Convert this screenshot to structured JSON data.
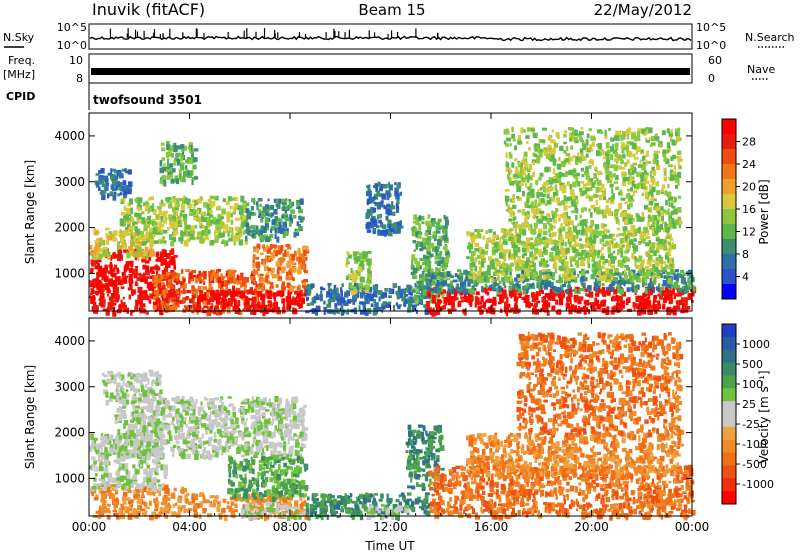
{
  "header": {
    "station": "Inuvik (fitACF)",
    "beam": "Beam 15",
    "date": "22/May/2012"
  },
  "side_labels": {
    "nsky": "N.Sky",
    "nsearch": "N.Search",
    "freq": "Freq.",
    "mhz": "[MHz]",
    "nave": "Nave",
    "cpid": "CPID",
    "cpid_value": "twofsound 3501"
  },
  "noise_panel": {
    "left_ticks": [
      "10^5",
      "10^0"
    ],
    "right_ticks": [
      "10^5",
      "10^0"
    ]
  },
  "freq_panel": {
    "left_ticks": [
      "10",
      "8"
    ],
    "right_ticks": [
      "60",
      "0"
    ]
  },
  "chart_data": [
    {
      "type": "heatmap",
      "name": "power",
      "xlabel": "",
      "ylabel": "Slant Range [km]",
      "x_ticks": [
        "00:00",
        "04:00",
        "08:00",
        "12:00",
        "16:00",
        "20:00",
        "00:00"
      ],
      "y_ticks": [
        1000,
        2000,
        3000,
        4000
      ],
      "xlim_hours": [
        0,
        24
      ],
      "ylim": [
        180,
        4500
      ],
      "colorbar": {
        "label": "Power [dB]",
        "ticks": [
          "4",
          "8",
          "12",
          "16",
          "20",
          "24",
          "28"
        ],
        "colors": [
          "#0000ff",
          "#2a55c8",
          "#2e6fa8",
          "#3a8f70",
          "#5cb84a",
          "#8cc83c",
          "#d8c83a",
          "#f0a030",
          "#f07818",
          "#f04c10",
          "#e81c0c",
          "#ff0000"
        ]
      },
      "clusters": [
        {
          "t0": 0.0,
          "t1": 3.4,
          "r0": 190,
          "r1": 1550,
          "level": 11
        },
        {
          "t0": 0.0,
          "t1": 2.5,
          "r0": 1400,
          "r1": 2000,
          "level": 6
        },
        {
          "t0": 2.5,
          "t1": 6.8,
          "r0": 190,
          "r1": 1100,
          "level": 9
        },
        {
          "t0": 4.2,
          "t1": 8.6,
          "r0": 190,
          "r1": 650,
          "level": 11
        },
        {
          "t0": 6.5,
          "t1": 8.6,
          "r0": 700,
          "r1": 1650,
          "level": 8
        },
        {
          "t0": 1.2,
          "t1": 6.2,
          "r0": 1700,
          "r1": 2700,
          "level": 5
        },
        {
          "t0": 6.2,
          "t1": 8.4,
          "r0": 1800,
          "r1": 2650,
          "level": 3
        },
        {
          "t0": 0.2,
          "t1": 1.6,
          "r0": 2700,
          "r1": 3300,
          "level": 2
        },
        {
          "t0": 2.8,
          "t1": 4.2,
          "r0": 3000,
          "r1": 3900,
          "level": 4
        },
        {
          "t0": 8.6,
          "t1": 13.5,
          "r0": 190,
          "r1": 800,
          "level": 2
        },
        {
          "t0": 10.2,
          "t1": 11.2,
          "r0": 600,
          "r1": 1500,
          "level": 5
        },
        {
          "t0": 12.8,
          "t1": 14.2,
          "r0": 450,
          "r1": 2300,
          "level": 4
        },
        {
          "t0": 13.4,
          "t1": 24.0,
          "r0": 190,
          "r1": 720,
          "level": 11
        },
        {
          "t0": 13.4,
          "t1": 24.0,
          "r0": 650,
          "r1": 1100,
          "level": 3
        },
        {
          "t0": 15.0,
          "t1": 23.2,
          "r0": 900,
          "r1": 2000,
          "level": 5
        },
        {
          "t0": 11.0,
          "t1": 12.4,
          "r0": 1900,
          "r1": 3000,
          "level": 2
        },
        {
          "t0": 16.5,
          "t1": 23.5,
          "r0": 2000,
          "r1": 4200,
          "level": 5
        }
      ]
    },
    {
      "type": "heatmap",
      "name": "velocity",
      "xlabel": "Time UT",
      "ylabel": "Slant Range [km]",
      "x_ticks": [
        "00:00",
        "04:00",
        "08:00",
        "12:00",
        "16:00",
        "20:00",
        "00:00"
      ],
      "y_ticks": [
        1000,
        2000,
        3000,
        4000
      ],
      "xlim_hours": [
        0,
        24
      ],
      "ylim": [
        180,
        4500
      ],
      "colorbar": {
        "label": "Velocity [m s⁻¹]",
        "ticks": [
          "1000",
          "500",
          "100",
          "25",
          "-25",
          "-100",
          "-500",
          "-1000"
        ],
        "colors": [
          "#2040c0",
          "#2a5aa8",
          "#2f7088",
          "#3a8a66",
          "#4ca44a",
          "#6ec23c",
          "#c8c8c8",
          "#c8c8c8",
          "#f0a040",
          "#f08a28",
          "#f07018",
          "#f05010",
          "#f03008",
          "#ff0000"
        ]
      },
      "clusters": [
        {
          "t0": 0.0,
          "t1": 3.8,
          "r0": 190,
          "r1": 900,
          "level": 9
        },
        {
          "t0": 0.0,
          "t1": 3.0,
          "r0": 800,
          "r1": 2000,
          "level": 6
        },
        {
          "t0": 1.0,
          "t1": 8.6,
          "r0": 1500,
          "r1": 2800,
          "level": 6
        },
        {
          "t0": 3.8,
          "t1": 8.6,
          "r0": 190,
          "r1": 700,
          "level": 9
        },
        {
          "t0": 5.5,
          "t1": 8.6,
          "r0": 600,
          "r1": 1500,
          "level": 4
        },
        {
          "t0": 6.0,
          "t1": 8.6,
          "r0": 190,
          "r1": 500,
          "level": 6
        },
        {
          "t0": 0.5,
          "t1": 2.8,
          "r0": 2700,
          "r1": 3400,
          "level": 6
        },
        {
          "t0": 8.6,
          "t1": 13.5,
          "r0": 190,
          "r1": 700,
          "level": 3
        },
        {
          "t0": 11.0,
          "t1": 12.6,
          "r0": 190,
          "r1": 450,
          "level": 6
        },
        {
          "t0": 12.6,
          "t1": 14.0,
          "r0": 800,
          "r1": 2200,
          "level": 3
        },
        {
          "t0": 13.5,
          "t1": 24.0,
          "r0": 190,
          "r1": 1300,
          "level": 10
        },
        {
          "t0": 15.0,
          "t1": 23.5,
          "r0": 1100,
          "r1": 2000,
          "level": 9
        },
        {
          "t0": 17.0,
          "t1": 23.5,
          "r0": 2000,
          "r1": 4200,
          "level": 10
        }
      ]
    }
  ]
}
